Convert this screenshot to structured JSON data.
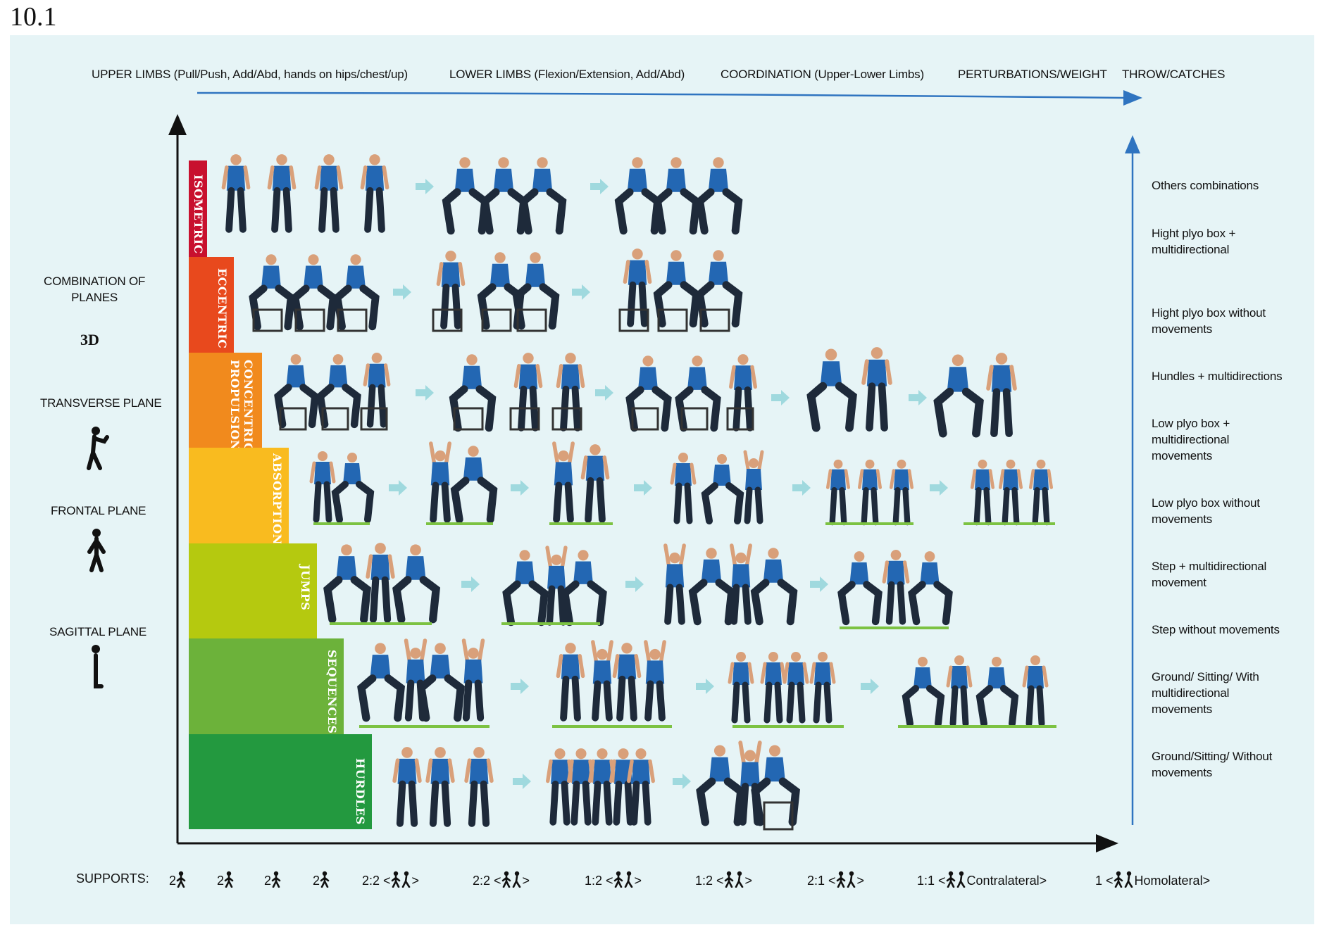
{
  "figure_number": "10.1",
  "top_axis_labels": [
    "UPPER LIMBS (Pull/Push, Add/Abd, hands on hips/chest/up)",
    "LOWER LIMBS (Flexion/Extension, Add/Abd)",
    "COORDINATION (Upper-Lower Limbs)",
    "PERTURBATIONS/WEIGHT",
    "THROW/CATCHES"
  ],
  "left_labels": {
    "combination": "COMBINATION OF\nPLANES",
    "three_d": "3D",
    "transverse": "TRANSVERSE PLANE",
    "frontal": "FRONTAL PLANE",
    "sagittal": "SAGITTAL PLANE"
  },
  "steps": [
    {
      "label": "ISOMETRIC",
      "color": "#c8102e"
    },
    {
      "label": "ECCENTRIC",
      "color": "#e8491d"
    },
    {
      "label": "CONCENTRIC\nPROPULSIONS",
      "color": "#f18a1d"
    },
    {
      "label": "ABSORPTIONS",
      "color": "#f9bb1f"
    },
    {
      "label": "JUMPS",
      "color": "#b5c90f"
    },
    {
      "label": "SEQUENCES",
      "color": "#6cb23a"
    },
    {
      "label": "HURDLES",
      "color": "#23993f"
    }
  ],
  "right_labels": [
    "Others combinations",
    "Hight plyo box +\nmultidirectional",
    "Hight plyo box without\nmovements",
    "Hundles + multidirections",
    "Low plyo box +\nmultidirectional\nmovements",
    "Low plyo box without\nmovements",
    "Step + multidirectional\nmovement",
    "Step without movements",
    "Ground/ Sitting/ With\nmultidirectional\nmovements",
    "Ground/Sitting/ Without\nmovements"
  ],
  "supports": {
    "title": "SUPPORTS:",
    "items": [
      "2",
      "2",
      "2",
      "2",
      "2:2 <",
      ">",
      "2:2 <",
      ">",
      "1:2 <",
      ">",
      "1:2 <",
      ">",
      "2:1 <",
      ">",
      "1:1 <",
      "Contralateral>",
      "1 <",
      "Homolateral>"
    ]
  },
  "colors": {
    "panel": "#e6f4f6",
    "axis": "#111111",
    "top_arrow": "#2f74c0",
    "row_arrow": "#9fd9de",
    "shirt": "#2367b3",
    "pants": "#1e2a3a",
    "skin": "#d9a07a",
    "grass": "#7cc242",
    "box": "#333333"
  }
}
